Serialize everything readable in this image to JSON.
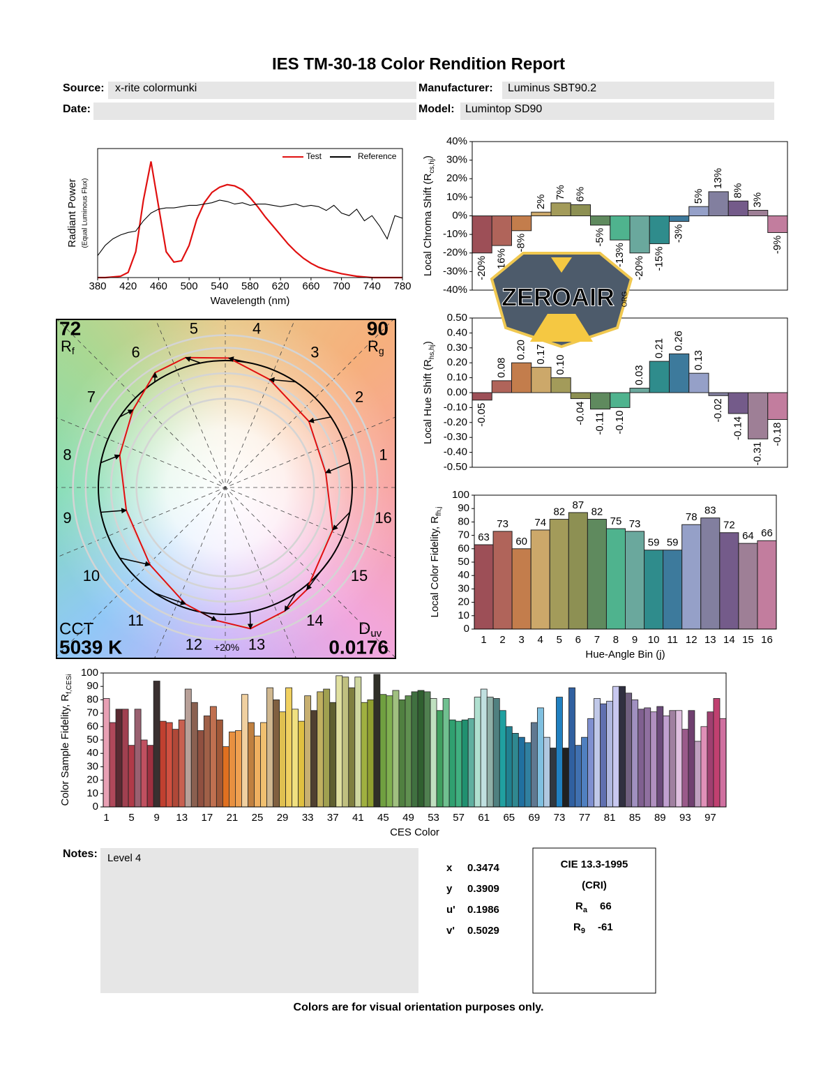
{
  "header": {
    "title": "IES TM-30-18 Color Rendition Report",
    "fields": [
      {
        "label": "Source:",
        "value": "x-rite colormunki"
      },
      {
        "label": "Manufacturer:",
        "value": "Luminus SBT90.2"
      },
      {
        "label": "Date:"
      },
      {
        "label": "Model:",
        "value": "Lumintop SD90"
      }
    ]
  },
  "chart_data": [
    {
      "type": "line",
      "x_label": "Wavelength (nm)",
      "y_label": "Radiant Power",
      "y_sublabel": "(Equal Luminous Flux)",
      "x": [
        380,
        390,
        400,
        410,
        420,
        430,
        440,
        450,
        460,
        470,
        480,
        490,
        500,
        510,
        520,
        530,
        540,
        550,
        560,
        570,
        580,
        590,
        600,
        610,
        620,
        630,
        640,
        650,
        660,
        670,
        680,
        690,
        700,
        710,
        720,
        730,
        740,
        750,
        760,
        770,
        780
      ],
      "series": [
        {
          "name": "Test",
          "color": "#e01010",
          "values": [
            0,
            0,
            0.005,
            0.01,
            0.04,
            0.2,
            0.6,
            0.9,
            0.55,
            0.2,
            0.12,
            0.13,
            0.25,
            0.45,
            0.58,
            0.66,
            0.7,
            0.72,
            0.71,
            0.68,
            0.62,
            0.55,
            0.47,
            0.4,
            0.33,
            0.26,
            0.2,
            0.15,
            0.11,
            0.08,
            0.06,
            0.045,
            0.03,
            0.02,
            0.01,
            0.005,
            0,
            0,
            0,
            0,
            0
          ]
        },
        {
          "name": "Reference",
          "color": "#000000",
          "values": [
            0.17,
            0.25,
            0.3,
            0.33,
            0.35,
            0.36,
            0.44,
            0.5,
            0.53,
            0.54,
            0.54,
            0.55,
            0.56,
            0.56,
            0.57,
            0.58,
            0.6,
            0.59,
            0.57,
            0.58,
            0.56,
            0.57,
            0.57,
            0.56,
            0.55,
            0.56,
            0.57,
            0.55,
            0.56,
            0.55,
            0.52,
            0.56,
            0.5,
            0.48,
            0.53,
            0.44,
            0.48,
            0.4,
            0.3,
            0.48,
            0.46
          ]
        }
      ],
      "xlim": [
        380,
        780
      ],
      "xticks": [
        380,
        420,
        460,
        500,
        540,
        580,
        620,
        660,
        700,
        740,
        780
      ],
      "ylim": [
        0,
        1
      ],
      "legend": "top-right"
    },
    {
      "type": "bar",
      "y_label": [
        "Local Chroma Shift (R",
        "cs,hj",
        ")"
      ],
      "values": [
        -20,
        -16,
        -8,
        2,
        7,
        6,
        -5,
        -13,
        -20,
        -15,
        -3,
        5,
        13,
        8,
        3,
        -9
      ],
      "value_labels": [
        "-20%",
        "-16%",
        "-8%",
        "2%",
        "7%",
        "6%",
        "-5%",
        "-13%",
        "-20%",
        "-15%",
        "-3%",
        "5%",
        "13%",
        "8%",
        "3%",
        "-9%"
      ],
      "data_labels": "vertical",
      "colors": [
        "#9d4f57",
        "#b0645a",
        "#c37d4c",
        "#cca86a",
        "#a39b5a",
        "#8d9053",
        "#5f8a5e",
        "#4fb38e",
        "#6aa89d",
        "#2f8c8c",
        "#3d7a9c",
        "#95a0c8",
        "#827f9f",
        "#745b8a",
        "#9e7f96",
        "#c27d9e"
      ],
      "ylim": [
        -40,
        40
      ],
      "yticks": [
        {
          "value": -40,
          "label": "-40%"
        },
        {
          "value": -30,
          "label": "-30%"
        },
        {
          "value": -20,
          "label": "-20%"
        },
        {
          "value": -10,
          "label": "-10%"
        },
        {
          "value": 0,
          "label": "0%"
        },
        {
          "value": 10,
          "label": "10%"
        },
        {
          "value": 20,
          "label": "20%"
        },
        {
          "value": 30,
          "label": "30%"
        },
        {
          "value": 40,
          "label": "40%"
        }
      ]
    },
    {
      "type": "bar",
      "y_label": [
        "Local Hue Shift (R",
        "hs,hj",
        ")"
      ],
      "values": [
        -0.05,
        0.08,
        0.2,
        0.17,
        0.1,
        -0.04,
        -0.11,
        -0.1,
        0.03,
        0.21,
        0.26,
        0.13,
        -0.02,
        -0.14,
        -0.31,
        -0.18
      ],
      "value_labels": [
        "-0.05",
        "0.08",
        "0.20",
        "0.17",
        "0.10",
        "-0.04",
        "-0.11",
        "-0.10",
        "0.03",
        "0.21",
        "0.26",
        "0.13",
        "-0.02",
        "-0.14",
        "-0.31",
        "-0.18"
      ],
      "data_labels": "vertical",
      "colors": [
        "#9d4f57",
        "#b0645a",
        "#c37d4c",
        "#cca86a",
        "#a39b5a",
        "#8d9053",
        "#5f8a5e",
        "#4fb38e",
        "#6aa89d",
        "#2f8c8c",
        "#3d7a9c",
        "#95a0c8",
        "#827f9f",
        "#745b8a",
        "#9e7f96",
        "#c27d9e"
      ],
      "ylim": [
        -0.5,
        0.5
      ],
      "yticks": [
        {
          "value": -0.5,
          "label": "-0.50"
        },
        {
          "value": -0.4,
          "label": "-0.40"
        },
        {
          "value": -0.3,
          "label": "-0.30"
        },
        {
          "value": -0.2,
          "label": "-0.20"
        },
        {
          "value": -0.1,
          "label": "-0.10"
        },
        {
          "value": 0,
          "label": "0.00"
        },
        {
          "value": 0.1,
          "label": "0.10"
        },
        {
          "value": 0.2,
          "label": "0.20"
        },
        {
          "value": 0.3,
          "label": "0.30"
        },
        {
          "value": 0.4,
          "label": "0.40"
        },
        {
          "value": 0.5,
          "label": "0.50"
        }
      ]
    },
    {
      "type": "bar",
      "y_label": [
        "Local Color Fidelity, R",
        "fh,j"
      ],
      "x_label": "Hue-Angle Bin (j)",
      "categories": [
        1,
        2,
        3,
        4,
        5,
        6,
        7,
        8,
        9,
        10,
        11,
        12,
        13,
        14,
        15,
        16
      ],
      "values": [
        63,
        73,
        60,
        74,
        82,
        87,
        82,
        75,
        73,
        59,
        59,
        78,
        83,
        72,
        64,
        66
      ],
      "data_labels": "horizontal",
      "colors": [
        "#9d4f57",
        "#b0645a",
        "#c37d4c",
        "#cca86a",
        "#a39b5a",
        "#8d9053",
        "#5f8a5e",
        "#4fb38e",
        "#6aa89d",
        "#2f8c8c",
        "#3d7a9c",
        "#95a0c8",
        "#827f9f",
        "#745b8a",
        "#9e7f96",
        "#c27d9e"
      ],
      "ylim": [
        0,
        100
      ],
      "yticks": [
        0,
        10,
        20,
        30,
        40,
        50,
        60,
        70,
        80,
        90,
        100
      ]
    },
    {
      "type": "vector",
      "rf": 72,
      "rf_label": [
        "R",
        "f"
      ],
      "rg": 90,
      "rg_label": [
        "R",
        "g"
      ],
      "cct_label": "CCT",
      "cct": "5039 K",
      "duv_label": [
        "D",
        "uv"
      ],
      "duv": 0.0176,
      "ring_label": "+20%",
      "bins": [
        1,
        2,
        3,
        4,
        5,
        6,
        7,
        8,
        9,
        10,
        11,
        12,
        13,
        14,
        15,
        16
      ]
    },
    {
      "type": "bar",
      "y_label": [
        "Color Sample Fidelity, R",
        "f,CESi"
      ],
      "x_label": "CES Color",
      "categories": [
        1,
        null,
        null,
        null,
        5,
        null,
        null,
        null,
        9,
        null,
        null,
        null,
        13,
        null,
        null,
        null,
        17,
        null,
        null,
        null,
        21,
        null,
        null,
        null,
        25,
        null,
        null,
        null,
        29,
        null,
        null,
        null,
        33,
        null,
        null,
        null,
        37,
        null,
        null,
        null,
        41,
        null,
        null,
        null,
        45,
        null,
        null,
        null,
        49,
        null,
        null,
        null,
        53,
        null,
        null,
        null,
        57,
        null,
        null,
        null,
        61,
        null,
        null,
        null,
        65,
        null,
        null,
        null,
        69,
        null,
        null,
        null,
        73,
        null,
        null,
        null,
        77,
        null,
        null,
        null,
        81,
        null,
        null,
        null,
        85,
        null,
        null,
        null,
        89,
        null,
        null,
        null,
        93,
        null,
        null,
        null,
        97,
        null,
        null
      ],
      "values": [
        81,
        63,
        73,
        73,
        46,
        73,
        50,
        46,
        94,
        64,
        63,
        58,
        65,
        88,
        78,
        57,
        68,
        75,
        65,
        45,
        56,
        57,
        84,
        63,
        53,
        63,
        89,
        80,
        71,
        89,
        73,
        64,
        83,
        72,
        86,
        88,
        78,
        98,
        97,
        89,
        97,
        78,
        80,
        99,
        84,
        83,
        87,
        80,
        83,
        86,
        87,
        86,
        81,
        72,
        81,
        65,
        64,
        65,
        66,
        82,
        88,
        82,
        81,
        72,
        60,
        55,
        52,
        48,
        63,
        74,
        52,
        44,
        82,
        44,
        89,
        46,
        52,
        66,
        81,
        77,
        79,
        90,
        90,
        85,
        80,
        73,
        74,
        71,
        75,
        68,
        72,
        72,
        58,
        72,
        49,
        60,
        71,
        81,
        66
      ],
      "colors": [
        "#e8a0b4",
        "#b0485a",
        "#5a2a32",
        "#a04050",
        "#b03a48",
        "#9a6070",
        "#c05060",
        "#a03040",
        "#3a3030",
        "#c04030",
        "#d05040",
        "#b04838",
        "#c86050",
        "#b8a098",
        "#8a6050",
        "#905040",
        "#a06048",
        "#c07050",
        "#a05838",
        "#e07020",
        "#e89040",
        "#f0a050",
        "#f0d0a0",
        "#c08040",
        "#f0b060",
        "#f0c070",
        "#d0b890",
        "#806040",
        "#e0c050",
        "#f0d060",
        "#f0e080",
        "#e0c040",
        "#c8b070",
        "#504030",
        "#c0b060",
        "#a0a050",
        "#606030",
        "#e0e0a0",
        "#c0c080",
        "#808040",
        "#d0d8a0",
        "#a0b040",
        "#90a030",
        "#303028",
        "#70a040",
        "#80b050",
        "#a0c080",
        "#508040",
        "#609050",
        "#407040",
        "#306030",
        "#508050",
        "#c0e0c0",
        "#40a060",
        "#70c090",
        "#30a070",
        "#40b080",
        "#209070",
        "#60b0a0",
        "#b0e0d0",
        "#c0e0e0",
        "#90b0a8",
        "#508080",
        "#20a0a0",
        "#208090",
        "#308890",
        "#2070a0",
        "#3080a0",
        "#607890",
        "#80c0e0",
        "#b0c8e0",
        "#303840",
        "#2080c0",
        "#202020",
        "#3060a0",
        "#4070b0",
        "#5080c0",
        "#8090d0",
        "#c0c8e8",
        "#6070b0",
        "#b0b8e0",
        "#c8c8f0",
        "#303040",
        "#706080",
        "#a090c0",
        "#806090",
        "#9070a0",
        "#b090c0",
        "#6a4a7a",
        "#c0a0d0",
        "#a080a0",
        "#e0c0e0",
        "#9a5a8a",
        "#704070",
        "#c0a0c0",
        "#e090b8",
        "#a04070",
        "#c04070",
        "#d070a0"
      ],
      "ylim": [
        0,
        100
      ],
      "yticks": [
        0,
        10,
        20,
        30,
        40,
        50,
        60,
        70,
        80,
        90,
        100
      ]
    }
  ],
  "notes": {
    "label": "Notes:",
    "text": "Level 4"
  },
  "chromaticity": [
    {
      "label": "x",
      "value": 0.3474
    },
    {
      "label": "y",
      "value": 0.3909
    },
    {
      "label": "u'",
      "value": 0.1986
    },
    {
      "label": "v'",
      "value": 0.5029
    }
  ],
  "cri": {
    "title": "CIE 13.3-1995",
    "subtitle": "(CRI)",
    "ra_label": [
      "R",
      "a"
    ],
    "ra": 66,
    "r9_label": [
      "R",
      "9"
    ],
    "r9": -61
  },
  "watermark": {
    "text": "ZEROAIR",
    "sub": "ORG"
  },
  "footer": "Colors are for visual orientation purposes only."
}
